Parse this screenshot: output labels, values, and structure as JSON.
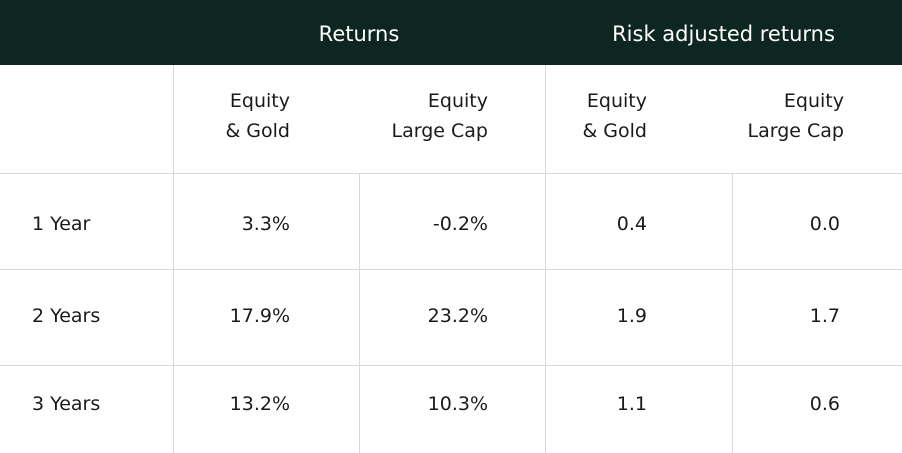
{
  "chart_data": {
    "type": "table",
    "groups": [
      {
        "label": "Returns",
        "columns": [
          {
            "line1": "Equity",
            "line2": "& Gold"
          },
          {
            "line1": "Equity",
            "line2": "Large Cap"
          }
        ]
      },
      {
        "label": "Risk adjusted returns",
        "columns": [
          {
            "line1": "Equity",
            "line2": "& Gold"
          },
          {
            "line1": "Equity",
            "line2": "Large Cap"
          }
        ]
      }
    ],
    "rows": [
      {
        "label": "1 Year",
        "values": [
          "3.3%",
          "-0.2%",
          "0.4",
          "0.0"
        ]
      },
      {
        "label": "2 Years",
        "values": [
          "17.9%",
          "23.2%",
          "1.9",
          "1.7"
        ]
      },
      {
        "label": "3 Years",
        "values": [
          "13.2%",
          "10.3%",
          "1.1",
          "0.6"
        ]
      }
    ]
  },
  "colors": {
    "header_background": "#0d2620",
    "header_text": "#ffffff",
    "grid": "#d9d9d9"
  }
}
